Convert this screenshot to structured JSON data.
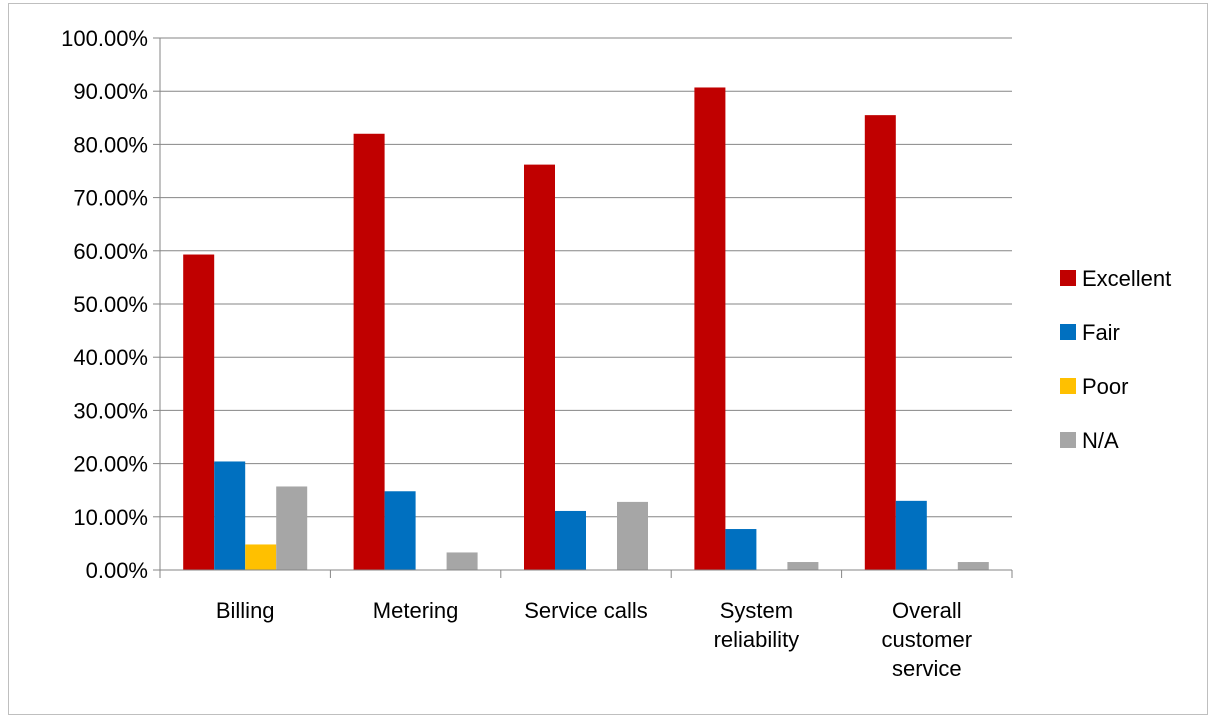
{
  "chart_data": {
    "type": "bar",
    "title": "",
    "xlabel": "",
    "ylabel": "",
    "ylim": [
      0,
      1.0
    ],
    "ytick_step": 0.1,
    "ytick_labels": [
      "0.00%",
      "10.00%",
      "20.00%",
      "30.00%",
      "40.00%",
      "50.00%",
      "60.00%",
      "70.00%",
      "80.00%",
      "90.00%",
      "100.00%"
    ],
    "grid": true,
    "legend_position": "right",
    "categories": [
      [
        "Billing"
      ],
      [
        "Metering"
      ],
      [
        "Service calls"
      ],
      [
        "System",
        "reliability"
      ],
      [
        "Overall",
        "customer",
        "service"
      ]
    ],
    "series": [
      {
        "name": "Excellent",
        "color": "#c00000",
        "values": [
          0.593,
          0.82,
          0.762,
          0.907,
          0.855
        ]
      },
      {
        "name": "Fair",
        "color": "#0070c0",
        "values": [
          0.204,
          0.148,
          0.111,
          0.077,
          0.13
        ]
      },
      {
        "name": "Poor",
        "color": "#ffc000",
        "values": [
          0.048,
          0.0,
          0.0,
          0.0,
          0.0
        ]
      },
      {
        "name": "N/A",
        "color": "#a6a6a6",
        "values": [
          0.157,
          0.033,
          0.128,
          0.015,
          0.015
        ]
      }
    ]
  }
}
